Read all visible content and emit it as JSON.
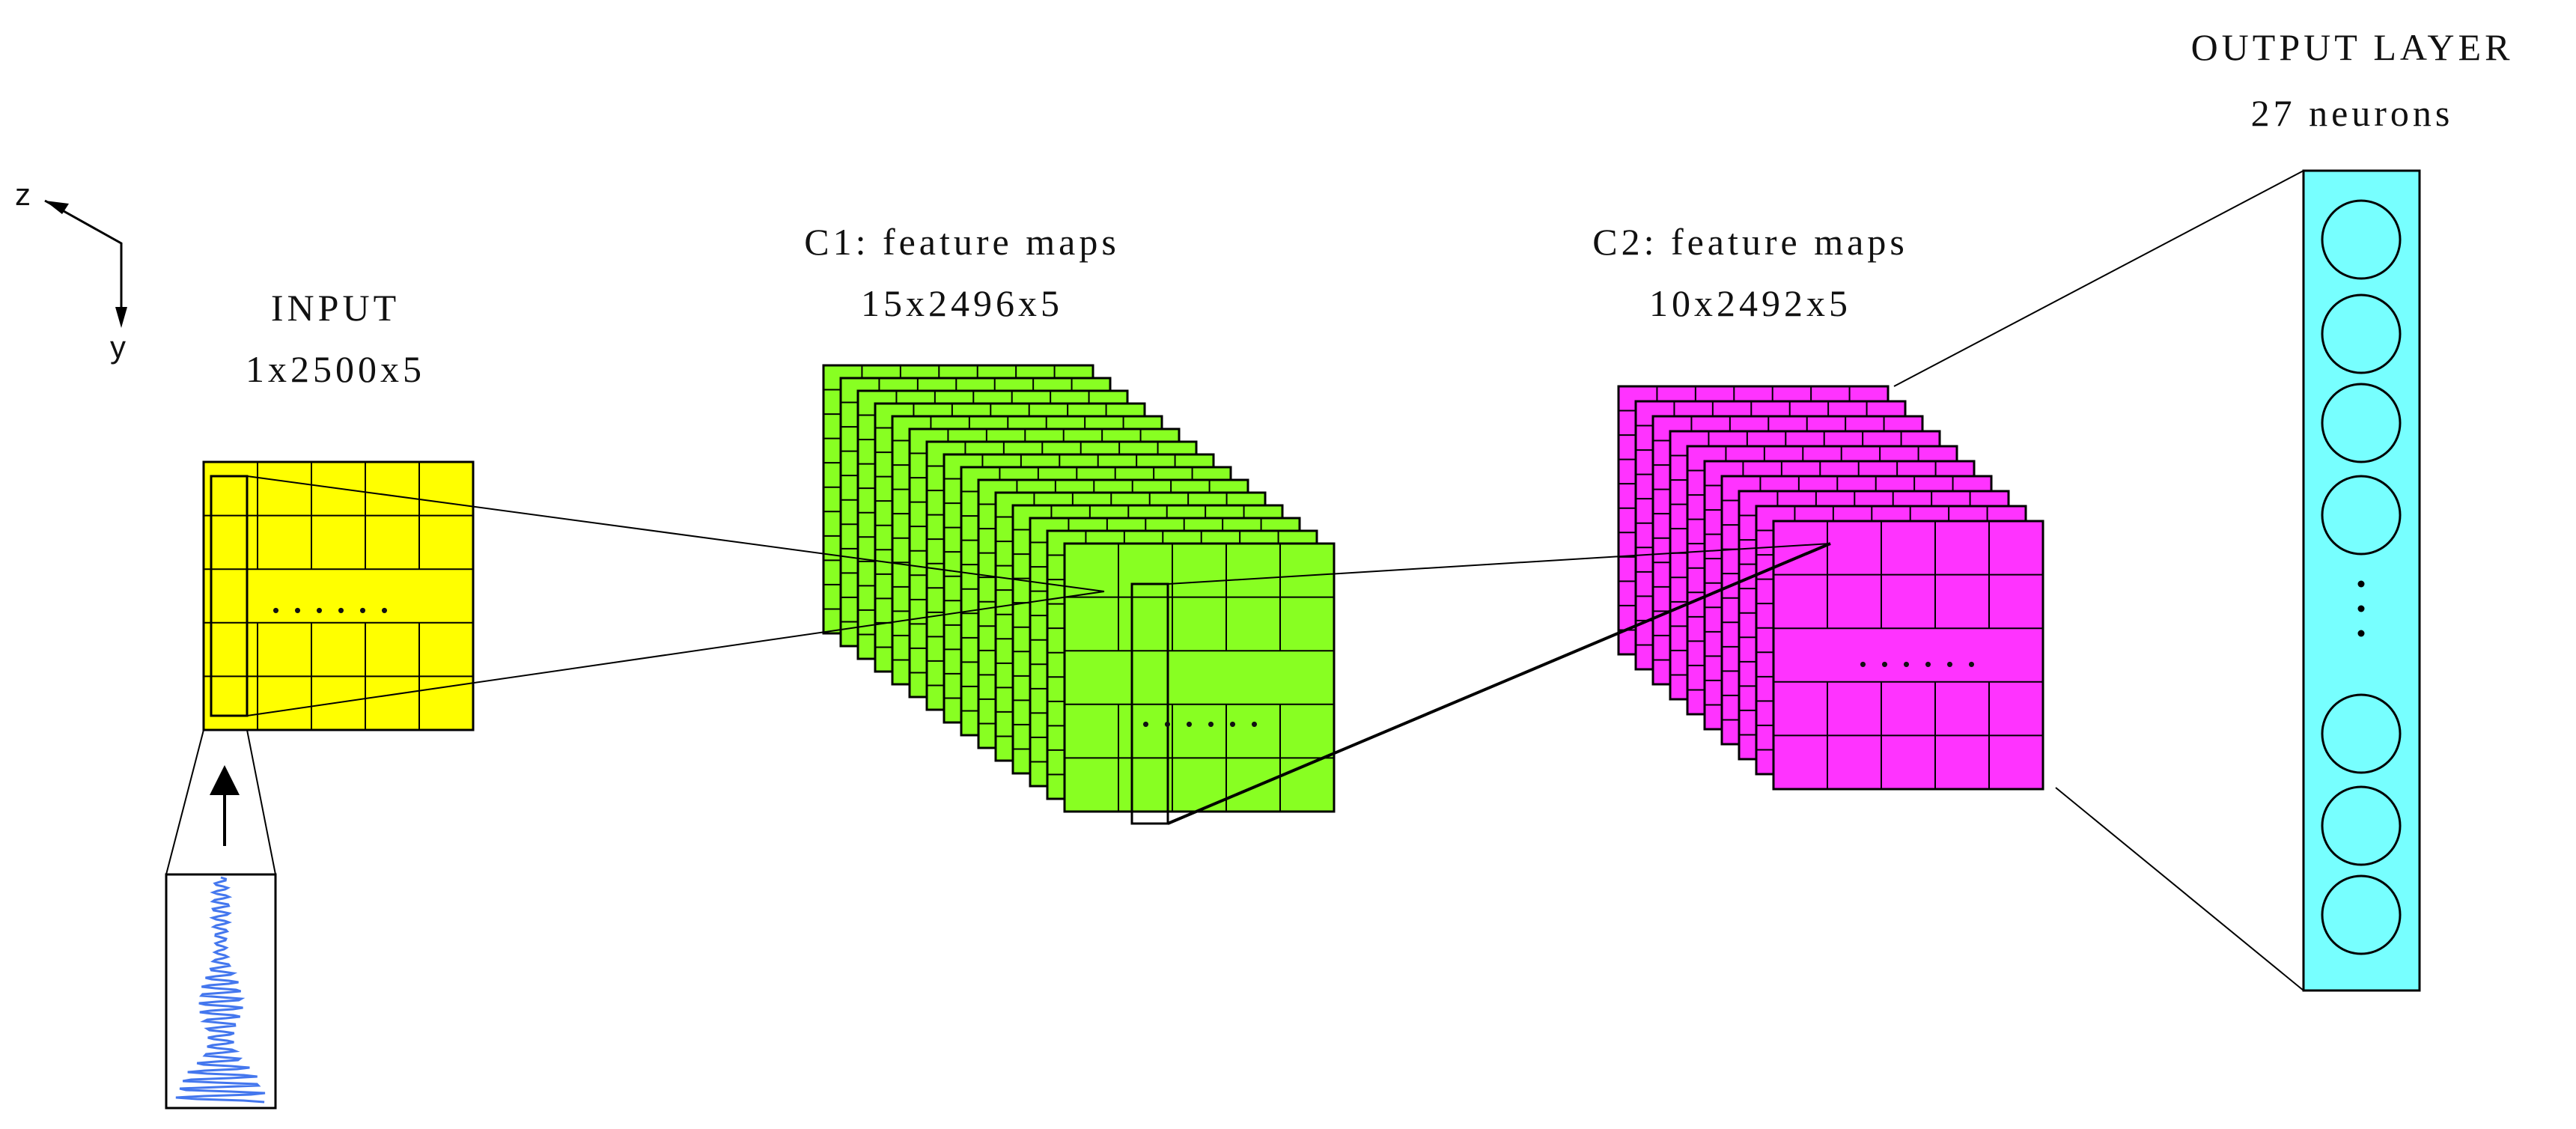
{
  "axes": {
    "z_label": "z",
    "y_label": "y"
  },
  "input": {
    "name": "INPUT",
    "shape": "1x2500x5",
    "color": "#ffff00"
  },
  "c1": {
    "name": "C1: feature maps",
    "shape": "15x2496x5",
    "color": "#88ff22"
  },
  "c2": {
    "name": "C2: feature maps",
    "shape": "10x2492x5",
    "color": "#ff33ff"
  },
  "output": {
    "name": "OUTPUT LAYER",
    "neurons": "27 neurons",
    "color": "#77ffff"
  },
  "signal": {
    "color": "#4477ee"
  },
  "ellipsis": "......",
  "vertical_ellipsis": "..."
}
